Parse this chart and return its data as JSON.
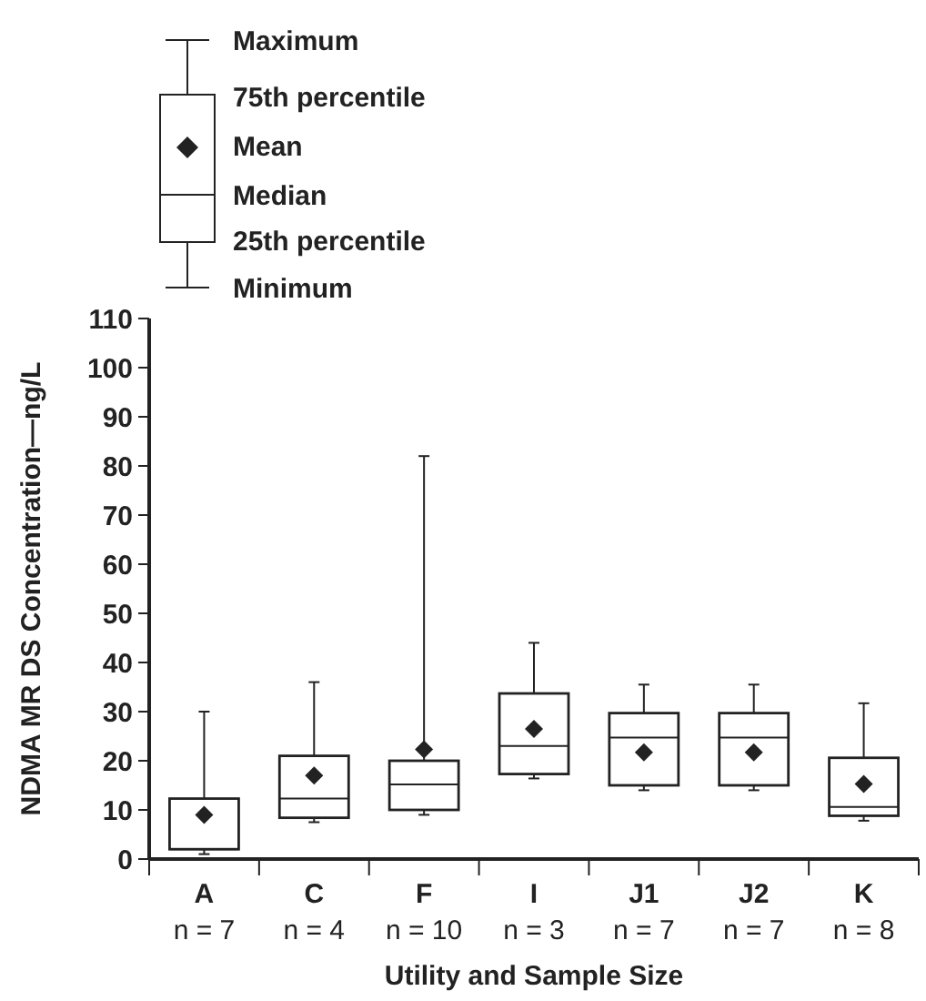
{
  "chart_data": {
    "type": "box",
    "xlabel": "Utility and Sample Size",
    "ylabel": "NDMA MR DS Concentration—ng/L",
    "categories": [
      "A\nn = 7",
      "C\nn = 4",
      "F\nn = 10",
      "I\nn = 3",
      "J1\nn = 7",
      "J2\nn = 7",
      "K\nn = 8"
    ],
    "boxes": [
      {
        "low": 1,
        "q1": 2,
        "median": 2,
        "q3": 12.3,
        "high": 30,
        "mean": 9
      },
      {
        "low": 7.5,
        "q1": 8.4,
        "median": 12.3,
        "q3": 21,
        "high": 36,
        "mean": 17
      },
      {
        "low": 9,
        "q1": 10,
        "median": 15.2,
        "q3": 20,
        "high": 82,
        "mean": 22.3
      },
      {
        "low": 16.4,
        "q1": 17.3,
        "median": 23,
        "q3": 33.7,
        "high": 44,
        "mean": 26.5
      },
      {
        "low": 14,
        "q1": 15,
        "median": 24.7,
        "q3": 29.7,
        "high": 35.5,
        "mean": 21.7
      },
      {
        "low": 14,
        "q1": 15,
        "median": 24.7,
        "q3": 29.7,
        "high": 35.5,
        "mean": 21.7
      },
      {
        "low": 7.8,
        "q1": 8.8,
        "median": 10.6,
        "q3": 20.6,
        "high": 31.7,
        "mean": 15.3
      }
    ],
    "ylim": [
      0,
      110
    ],
    "yticks": [
      0,
      10,
      20,
      30,
      40,
      50,
      60,
      70,
      80,
      90,
      100,
      110
    ],
    "annotations": [
      "Maximum",
      "75th percentile",
      "Mean",
      "Median",
      "25th percentile",
      "Minimum"
    ]
  }
}
